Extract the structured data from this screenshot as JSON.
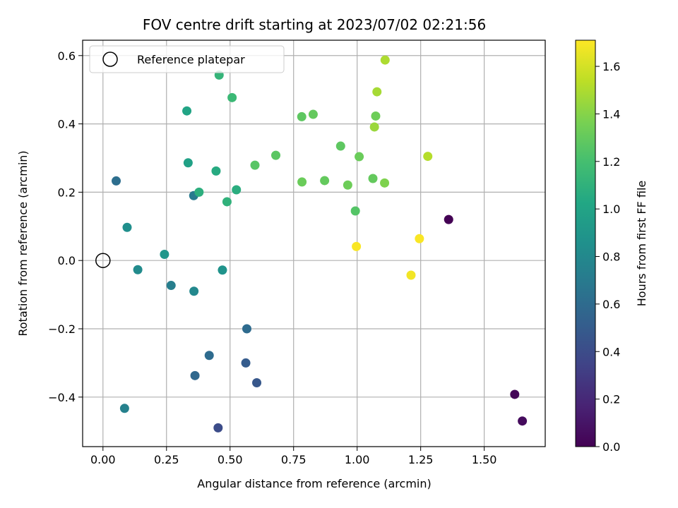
{
  "chart_data": {
    "type": "scatter",
    "title": "FOV centre drift starting at 2023/07/02 02:21:56",
    "xlabel": "Angular distance from reference (arcmin)",
    "ylabel": "Rotation from reference (arcmin)",
    "xlim": [
      -0.08,
      1.74
    ],
    "ylim": [
      -0.545,
      0.645
    ],
    "xticks": [
      0.0,
      0.25,
      0.5,
      0.75,
      1.0,
      1.25,
      1.5
    ],
    "xtick_labels": [
      "0.00",
      "0.25",
      "0.50",
      "0.75",
      "1.00",
      "1.25",
      "1.50"
    ],
    "yticks": [
      -0.4,
      -0.2,
      0.0,
      0.2,
      0.4,
      0.6
    ],
    "ytick_labels": [
      "−0.4",
      "−0.2",
      "0.0",
      "0.2",
      "0.4",
      "0.6"
    ],
    "grid": true,
    "colormap": "viridis",
    "colorbar": {
      "label": "Hours from first FF file",
      "range": [
        0.0,
        1.71
      ],
      "ticks": [
        0.0,
        0.2,
        0.4,
        0.6,
        0.8,
        1.0,
        1.2,
        1.4,
        1.6
      ],
      "tick_labels": [
        "0.0",
        "0.2",
        "0.4",
        "0.6",
        "0.8",
        "1.0",
        "1.2",
        "1.4",
        "1.6"
      ]
    },
    "legend": {
      "placement": "top-left",
      "entries": [
        {
          "label": "Reference platepar",
          "marker": "open-circle"
        }
      ]
    },
    "reference_point": {
      "x": 0.0,
      "y": 0.0
    },
    "points": [
      {
        "x": 1.36,
        "y": 0.12,
        "c": 0.0
      },
      {
        "x": 1.62,
        "y": -0.392,
        "c": 0.02
      },
      {
        "x": 1.65,
        "y": -0.47,
        "c": 0.05
      },
      {
        "x": 0.453,
        "y": -0.49,
        "c": 0.4
      },
      {
        "x": 0.605,
        "y": -0.358,
        "c": 0.47
      },
      {
        "x": 0.562,
        "y": -0.3,
        "c": 0.5
      },
      {
        "x": 0.362,
        "y": -0.337,
        "c": 0.58
      },
      {
        "x": 0.418,
        "y": -0.278,
        "c": 0.6
      },
      {
        "x": 0.566,
        "y": -0.2,
        "c": 0.6
      },
      {
        "x": 0.052,
        "y": 0.233,
        "c": 0.62
      },
      {
        "x": 0.268,
        "y": -0.073,
        "c": 0.73
      },
      {
        "x": 0.085,
        "y": -0.433,
        "c": 0.75
      },
      {
        "x": 0.357,
        "y": 0.19,
        "c": 0.7
      },
      {
        "x": 0.358,
        "y": -0.09,
        "c": 0.8
      },
      {
        "x": 0.137,
        "y": -0.027,
        "c": 0.82
      },
      {
        "x": 0.095,
        "y": 0.097,
        "c": 0.85
      },
      {
        "x": 0.242,
        "y": 0.018,
        "c": 0.9
      },
      {
        "x": 0.47,
        "y": -0.028,
        "c": 0.88
      },
      {
        "x": 0.335,
        "y": 0.286,
        "c": 0.98
      },
      {
        "x": 0.33,
        "y": 0.438,
        "c": 1.0
      },
      {
        "x": 0.445,
        "y": 0.262,
        "c": 1.05
      },
      {
        "x": 0.378,
        "y": 0.2,
        "c": 1.08
      },
      {
        "x": 0.525,
        "y": 0.207,
        "c": 1.07
      },
      {
        "x": 0.488,
        "y": 0.172,
        "c": 1.1
      },
      {
        "x": 0.457,
        "y": 0.543,
        "c": 1.12
      },
      {
        "x": 0.508,
        "y": 0.477,
        "c": 1.15
      },
      {
        "x": 0.598,
        "y": 0.279,
        "c": 1.26
      },
      {
        "x": 0.68,
        "y": 0.308,
        "c": 1.27
      },
      {
        "x": 0.782,
        "y": 0.421,
        "c": 1.28
      },
      {
        "x": 0.827,
        "y": 0.428,
        "c": 1.3
      },
      {
        "x": 0.783,
        "y": 0.23,
        "c": 1.32
      },
      {
        "x": 0.872,
        "y": 0.234,
        "c": 1.3
      },
      {
        "x": 0.935,
        "y": 0.335,
        "c": 1.28
      },
      {
        "x": 0.963,
        "y": 0.221,
        "c": 1.33
      },
      {
        "x": 1.008,
        "y": 0.304,
        "c": 1.32
      },
      {
        "x": 0.993,
        "y": 0.145,
        "c": 1.25
      },
      {
        "x": 1.062,
        "y": 0.24,
        "c": 1.3
      },
      {
        "x": 1.108,
        "y": 0.227,
        "c": 1.38
      },
      {
        "x": 1.073,
        "y": 0.423,
        "c": 1.33
      },
      {
        "x": 1.068,
        "y": 0.391,
        "c": 1.45
      },
      {
        "x": 1.078,
        "y": 0.494,
        "c": 1.48
      },
      {
        "x": 1.11,
        "y": 0.587,
        "c": 1.5
      },
      {
        "x": 1.278,
        "y": 0.305,
        "c": 1.52
      },
      {
        "x": 0.997,
        "y": 0.041,
        "c": 1.7
      },
      {
        "x": 1.245,
        "y": 0.064,
        "c": 1.7
      },
      {
        "x": 1.212,
        "y": -0.043,
        "c": 1.68
      }
    ]
  }
}
